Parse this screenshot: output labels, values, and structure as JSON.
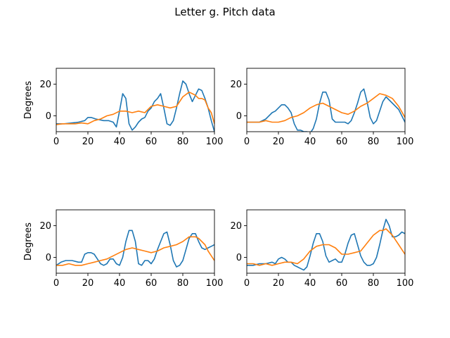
{
  "figure": {
    "title": "Letter g. Pitch data"
  },
  "colors": {
    "series_a": "#1f77b4",
    "series_b": "#ff7f0e",
    "axes": "#000000"
  },
  "chart_data": [
    {
      "type": "line",
      "panel": "top-left",
      "title": "",
      "xlabel": "",
      "ylabel": "Degrees",
      "xlim": [
        0,
        100
      ],
      "ylim": [
        -10,
        30
      ],
      "xticks": [
        "0",
        "20",
        "40",
        "60",
        "80",
        "100"
      ],
      "yticks": [
        "0",
        "20"
      ],
      "grid": false,
      "series": [
        {
          "x": [
            0,
            5,
            10,
            14,
            18,
            20,
            22,
            25,
            30,
            33,
            36,
            38,
            40,
            42,
            44,
            46,
            48,
            50,
            52,
            54,
            56,
            58,
            60,
            62,
            64,
            66,
            68,
            70,
            72,
            74,
            76,
            78,
            80,
            82,
            84,
            86,
            88,
            90,
            92,
            94,
            96,
            98,
            100
          ],
          "y": [
            -5,
            -5,
            -4.5,
            -4,
            -3,
            -1,
            -1,
            -2,
            -3,
            -3,
            -4,
            -7,
            3,
            14,
            11,
            -5,
            -9,
            -7,
            -4,
            -2,
            -1,
            3,
            5,
            9,
            11,
            14,
            5,
            -5,
            -6,
            -3,
            5,
            14,
            22,
            20,
            14,
            9,
            13,
            17,
            16,
            11,
            5,
            -3,
            -10
          ]
        },
        {
          "x": [
            0,
            4,
            8,
            12,
            16,
            20,
            24,
            28,
            32,
            36,
            40,
            44,
            48,
            52,
            56,
            60,
            64,
            68,
            72,
            76,
            80,
            84,
            86,
            88,
            90,
            92,
            94,
            96,
            98,
            100
          ],
          "y": [
            -5.5,
            -5,
            -5,
            -5,
            -4.5,
            -5,
            -3,
            -2,
            0,
            1,
            3,
            3,
            2,
            3,
            2,
            6,
            7,
            6,
            5,
            6,
            12,
            15,
            14,
            13,
            11,
            11,
            10,
            5,
            2,
            -5
          ]
        }
      ]
    },
    {
      "type": "line",
      "panel": "top-right",
      "title": "",
      "xlabel": "",
      "ylabel": "",
      "xlim": [
        0,
        100
      ],
      "ylim": [
        -10,
        30
      ],
      "xticks": [
        "0",
        "20",
        "40",
        "60",
        "80",
        "100"
      ],
      "yticks": [
        "0",
        "20"
      ],
      "grid": false,
      "series": [
        {
          "x": [
            0,
            4,
            8,
            12,
            16,
            18,
            20,
            22,
            24,
            26,
            28,
            30,
            32,
            34,
            36,
            38,
            40,
            42,
            44,
            46,
            48,
            50,
            52,
            54,
            56,
            58,
            60,
            62,
            64,
            66,
            68,
            70,
            72,
            74,
            76,
            78,
            80,
            82,
            84,
            86,
            88,
            90,
            92,
            94,
            96,
            98,
            100
          ],
          "y": [
            -4,
            -4,
            -4,
            -2,
            2,
            3,
            5,
            7,
            7,
            5,
            2,
            -5,
            -9,
            -9,
            -10,
            -10,
            -11,
            -8,
            -2,
            8,
            15,
            15,
            10,
            -2,
            -4,
            -4,
            -4,
            -4,
            -5,
            -3,
            2,
            8,
            15,
            17,
            9,
            -1,
            -5,
            -3,
            3,
            9,
            12,
            10,
            8,
            6,
            4,
            0,
            -4
          ]
        },
        {
          "x": [
            0,
            4,
            8,
            12,
            16,
            20,
            24,
            28,
            32,
            36,
            40,
            44,
            48,
            52,
            56,
            60,
            64,
            68,
            72,
            76,
            80,
            84,
            88,
            92,
            96,
            100
          ],
          "y": [
            -4,
            -4,
            -4,
            -3,
            -4,
            -4,
            -3,
            -1,
            0,
            2,
            5,
            7,
            8,
            6,
            4,
            2,
            1,
            3,
            6,
            8,
            11,
            14,
            13,
            11,
            6,
            -1
          ]
        }
      ]
    },
    {
      "type": "line",
      "panel": "bottom-left",
      "title": "",
      "xlabel": "",
      "ylabel": "Degrees",
      "xlim": [
        0,
        100
      ],
      "ylim": [
        -10,
        30
      ],
      "xticks": [
        "0",
        "20",
        "40",
        "60",
        "80",
        "100"
      ],
      "yticks": [
        "0",
        "20"
      ],
      "grid": false,
      "series": [
        {
          "x": [
            0,
            3,
            6,
            10,
            14,
            16,
            18,
            20,
            22,
            24,
            26,
            28,
            30,
            32,
            34,
            36,
            38,
            40,
            42,
            44,
            46,
            48,
            50,
            52,
            54,
            56,
            58,
            60,
            62,
            64,
            66,
            68,
            70,
            72,
            74,
            76,
            78,
            80,
            82,
            84,
            86,
            88,
            90,
            92,
            94,
            96,
            98,
            100
          ],
          "y": [
            -5,
            -3,
            -2,
            -2,
            -3,
            -3,
            2,
            3,
            3,
            2,
            -1,
            -4,
            -5,
            -4,
            -1,
            -1,
            -4,
            -5,
            0,
            10,
            17,
            17,
            10,
            -4,
            -5,
            -2,
            -2,
            -4,
            -1,
            5,
            10,
            15,
            16,
            8,
            -2,
            -6,
            -5,
            -2,
            5,
            12,
            15,
            15,
            10,
            6,
            5,
            6,
            7,
            8
          ]
        },
        {
          "x": [
            0,
            4,
            8,
            12,
            16,
            20,
            24,
            28,
            32,
            36,
            40,
            44,
            48,
            52,
            56,
            60,
            64,
            68,
            72,
            76,
            80,
            84,
            86,
            88,
            90,
            92,
            94,
            96,
            98,
            100
          ],
          "y": [
            -5,
            -5,
            -4,
            -5,
            -5,
            -4,
            -3,
            -2,
            -1,
            1,
            3,
            5,
            6,
            5,
            4,
            3,
            4,
            6,
            7,
            8,
            10,
            13,
            13,
            13,
            12,
            10,
            8,
            4,
            1,
            -2
          ]
        }
      ]
    },
    {
      "type": "line",
      "panel": "bottom-right",
      "title": "",
      "xlabel": "",
      "ylabel": "",
      "xlim": [
        0,
        100
      ],
      "ylim": [
        -10,
        30
      ],
      "xticks": [
        "0",
        "20",
        "40",
        "60",
        "80",
        "100"
      ],
      "yticks": [
        "0",
        "20"
      ],
      "grid": false,
      "series": [
        {
          "x": [
            0,
            4,
            8,
            12,
            16,
            18,
            20,
            22,
            24,
            26,
            28,
            30,
            32,
            34,
            36,
            38,
            40,
            42,
            44,
            46,
            48,
            50,
            52,
            54,
            56,
            58,
            60,
            62,
            64,
            66,
            68,
            70,
            72,
            74,
            76,
            78,
            80,
            82,
            84,
            86,
            88,
            90,
            92,
            94,
            96,
            98,
            100
          ],
          "y": [
            -5,
            -5,
            -4,
            -4,
            -3,
            -4,
            -1,
            0,
            -1,
            -3,
            -3,
            -5,
            -6,
            -7,
            -8,
            -6,
            1,
            9,
            15,
            15,
            10,
            1,
            -3,
            -2,
            -1,
            -3,
            -3,
            2,
            9,
            14,
            15,
            8,
            1,
            -3,
            -5,
            -5,
            -4,
            0,
            8,
            17,
            24,
            20,
            13,
            13,
            14,
            16,
            15
          ]
        },
        {
          "x": [
            0,
            4,
            8,
            12,
            16,
            20,
            24,
            28,
            32,
            36,
            40,
            44,
            48,
            52,
            56,
            60,
            64,
            68,
            72,
            76,
            80,
            84,
            86,
            88,
            90,
            92,
            94,
            96,
            98,
            100
          ],
          "y": [
            -4,
            -4,
            -5,
            -4,
            -5,
            -4,
            -3,
            -3,
            -4,
            -1,
            4,
            7,
            8,
            8,
            6,
            2,
            2,
            3,
            4,
            9,
            14,
            17,
            17,
            18,
            16,
            14,
            11,
            8,
            5,
            2
          ]
        }
      ]
    }
  ]
}
